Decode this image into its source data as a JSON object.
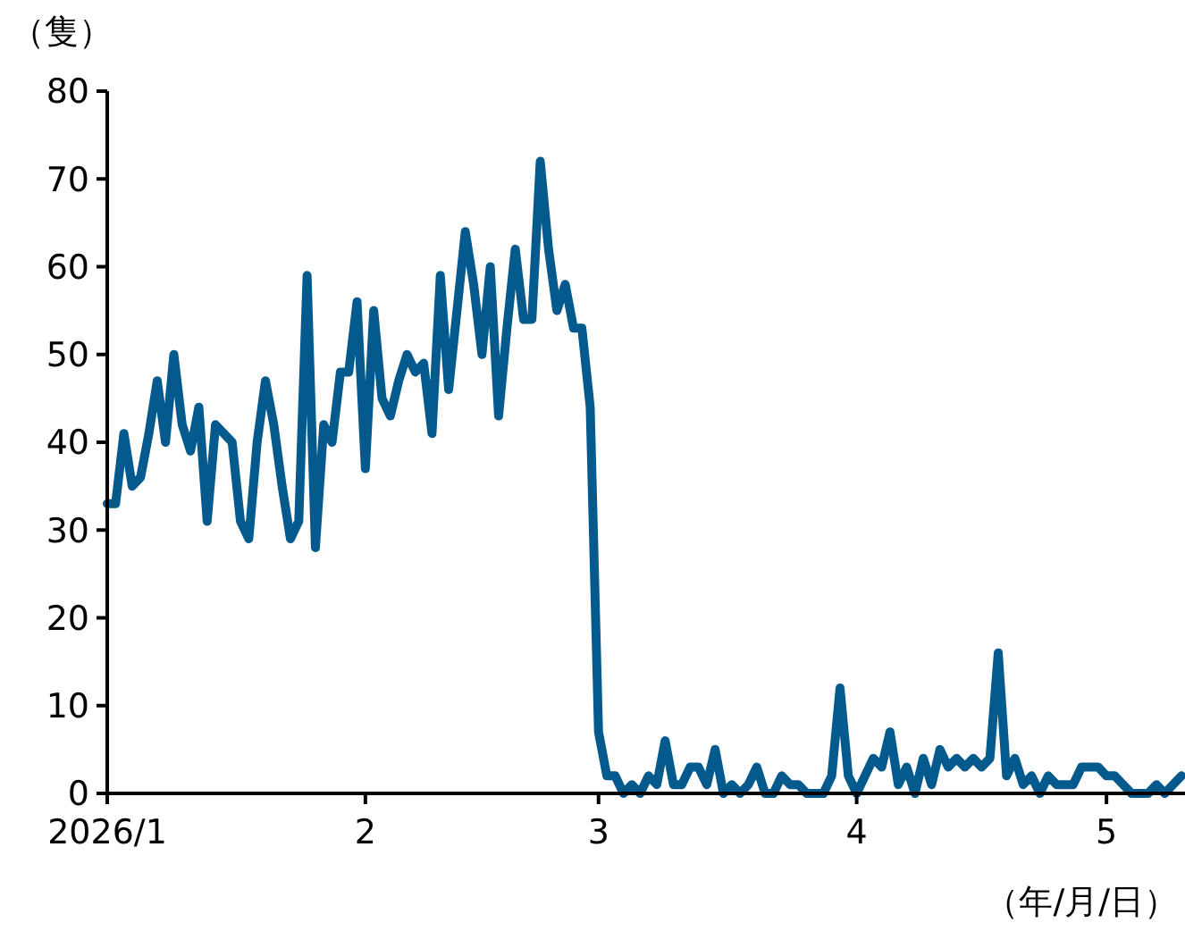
{
  "chart_data": {
    "type": "line",
    "ylabel": "（隻）",
    "xlabel": "（年/月/日）",
    "x": [
      "2026-01-01",
      "2026-01-02",
      "2026-01-03",
      "2026-01-04",
      "2026-01-05",
      "2026-01-06",
      "2026-01-07",
      "2026-01-08",
      "2026-01-09",
      "2026-01-10",
      "2026-01-11",
      "2026-01-12",
      "2026-01-13",
      "2026-01-14",
      "2026-01-15",
      "2026-01-16",
      "2026-01-17",
      "2026-01-18",
      "2026-01-19",
      "2026-01-20",
      "2026-01-21",
      "2026-01-22",
      "2026-01-23",
      "2026-01-24",
      "2026-01-25",
      "2026-01-26",
      "2026-01-27",
      "2026-01-28",
      "2026-01-29",
      "2026-01-30",
      "2026-01-31",
      "2026-02-01",
      "2026-02-02",
      "2026-02-03",
      "2026-02-04",
      "2026-02-05",
      "2026-02-06",
      "2026-02-07",
      "2026-02-08",
      "2026-02-09",
      "2026-02-10",
      "2026-02-11",
      "2026-02-12",
      "2026-02-13",
      "2026-02-14",
      "2026-02-15",
      "2026-02-16",
      "2026-02-17",
      "2026-02-18",
      "2026-02-19",
      "2026-02-20",
      "2026-02-21",
      "2026-02-22",
      "2026-02-23",
      "2026-02-24",
      "2026-02-25",
      "2026-02-26",
      "2026-02-27",
      "2026-02-28",
      "2026-03-01",
      "2026-03-02",
      "2026-03-03",
      "2026-03-04",
      "2026-03-05",
      "2026-03-06",
      "2026-03-07",
      "2026-03-08",
      "2026-03-09",
      "2026-03-10",
      "2026-03-11",
      "2026-03-12",
      "2026-03-13",
      "2026-03-14",
      "2026-03-15",
      "2026-03-16",
      "2026-03-17",
      "2026-03-18",
      "2026-03-19",
      "2026-03-20",
      "2026-03-21",
      "2026-03-22",
      "2026-03-23",
      "2026-03-24",
      "2026-03-25",
      "2026-03-26",
      "2026-03-27",
      "2026-03-28",
      "2026-03-29",
      "2026-03-30",
      "2026-03-31",
      "2026-04-01",
      "2026-04-02",
      "2026-04-03",
      "2026-04-04",
      "2026-04-05",
      "2026-04-06",
      "2026-04-07",
      "2026-04-08",
      "2026-04-09",
      "2026-04-10",
      "2026-04-11",
      "2026-04-12",
      "2026-04-13",
      "2026-04-14",
      "2026-04-15",
      "2026-04-16",
      "2026-04-17",
      "2026-04-18",
      "2026-04-19",
      "2026-04-20",
      "2026-04-21",
      "2026-04-22",
      "2026-04-23",
      "2026-04-24",
      "2026-04-25",
      "2026-04-26",
      "2026-04-27",
      "2026-04-28",
      "2026-04-29",
      "2026-04-30",
      "2026-05-01",
      "2026-05-02",
      "2026-05-03",
      "2026-05-04",
      "2026-05-05",
      "2026-05-06",
      "2026-05-07",
      "2026-05-08",
      "2026-05-09",
      "2026-05-10"
    ],
    "series": [
      {
        "color": "#045a8d",
        "values": [
          33,
          33,
          41,
          35,
          36,
          41,
          47,
          40,
          50,
          42,
          39,
          44,
          31,
          42,
          41,
          40,
          31,
          29,
          40,
          47,
          42,
          35,
          29,
          31,
          59,
          28,
          42,
          40,
          48,
          48,
          56,
          37,
          55,
          45,
          43,
          47,
          50,
          48,
          49,
          41,
          59,
          46,
          55,
          64,
          58,
          50,
          60,
          43,
          53,
          62,
          54,
          54,
          72,
          62,
          55,
          58,
          53,
          53,
          44,
          7,
          2,
          2,
          0,
          1,
          0,
          2,
          1,
          6,
          1,
          1,
          3,
          3,
          1,
          5,
          0,
          1,
          0,
          1,
          3,
          0,
          0,
          2,
          1,
          1,
          0,
          0,
          0,
          2,
          12,
          2,
          0,
          2,
          4,
          3,
          7,
          1,
          3,
          0,
          4,
          1,
          5,
          3,
          4,
          3,
          4,
          3,
          4,
          16,
          2,
          4,
          1,
          2,
          0,
          2,
          1,
          1,
          1,
          3,
          3,
          3,
          2,
          2,
          1,
          0,
          0,
          0,
          1,
          0,
          1,
          2
        ]
      }
    ],
    "xlim": [
      "2026-01-01",
      "2026-05-10"
    ],
    "xticks": [
      {
        "value": "2026-01-01",
        "label": "2026/1"
      },
      {
        "value": "2026-02-01",
        "label": "2"
      },
      {
        "value": "2026-03-01",
        "label": "3"
      },
      {
        "value": "2026-04-01",
        "label": "4"
      },
      {
        "value": "2026-05-01",
        "label": "5"
      }
    ],
    "ylim": [
      0,
      80
    ],
    "yticks": [
      0,
      10,
      20,
      30,
      40,
      50,
      60,
      70,
      80
    ],
    "grid": false,
    "marker": "none",
    "line_style": "solid"
  }
}
